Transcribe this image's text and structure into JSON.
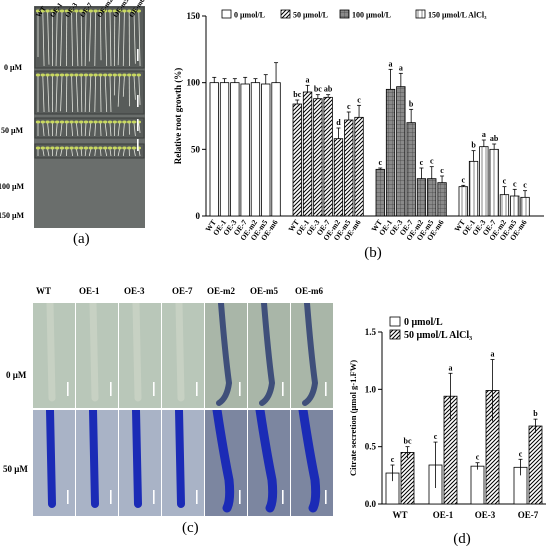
{
  "panel_a": {
    "label": "(a)",
    "genotypes": [
      "WT",
      "OE-1",
      "OE-3",
      "OE-7",
      "OE-m2",
      "OE-m5",
      "OE-m6"
    ],
    "treatments": [
      "0 μM",
      "50 μM",
      "100 μM",
      "150 μM"
    ]
  },
  "panel_b": {
    "label": "(b)",
    "chart_data": {
      "type": "bar",
      "ylabel": "Relative root growth (%)",
      "ylim": [
        0,
        150
      ],
      "yticks": [
        0,
        50,
        100,
        150
      ],
      "categories": [
        "WT",
        "OE-1",
        "OE-3",
        "OE-7",
        "OE-m2",
        "OE-m5",
        "OE-m6"
      ],
      "legend": [
        "0 μmol/L",
        "50 μmol/L",
        "100 μmol/L",
        "150 μmol/L AlCl₃"
      ],
      "series": [
        {
          "name": "0 μmol/L",
          "values": [
            100,
            100,
            100,
            99,
            100,
            99,
            100
          ],
          "errors": [
            4,
            3,
            3,
            5,
            3,
            7,
            15
          ],
          "letters": [
            "",
            "",
            "",
            "",
            "",
            "",
            ""
          ]
        },
        {
          "name": "50 μmol/L",
          "values": [
            84,
            93,
            88,
            89,
            58,
            72,
            74
          ],
          "errors": [
            3,
            5,
            3,
            2,
            8,
            6,
            9
          ],
          "letters": [
            "bc",
            "a",
            "bc",
            "ab",
            "d",
            "c",
            "c"
          ]
        },
        {
          "name": "100 μmol/L",
          "values": [
            35,
            95,
            97,
            70,
            28,
            28,
            25
          ],
          "errors": [
            1,
            15,
            10,
            10,
            8,
            9,
            5
          ],
          "letters": [
            "c",
            "a",
            "a",
            "b",
            "c",
            "c",
            "c"
          ]
        },
        {
          "name": "150 μmol/L AlCl₃",
          "values": [
            22,
            41,
            52,
            50,
            16,
            15,
            14
          ],
          "errors": [
            1,
            8,
            5,
            4,
            6,
            5,
            5
          ],
          "letters": [
            "c",
            "b",
            "a",
            "ab",
            "c",
            "c",
            "c"
          ]
        }
      ]
    }
  },
  "panel_c": {
    "label": "(c)",
    "genotypes": [
      "WT",
      "OE-1",
      "OE-3",
      "OE-7",
      "OE-m2",
      "OE-m5",
      "OE-m6"
    ],
    "treatments": [
      "0 μM",
      "50 μM"
    ]
  },
  "panel_d": {
    "label": "(d)",
    "chart_data": {
      "type": "bar",
      "ylabel": "Citrate secretion (μmol g-1.FW)",
      "ylim": [
        0,
        1.5
      ],
      "yticks": [
        "0.0",
        "0.5",
        "1.0",
        "1.5"
      ],
      "categories": [
        "WT",
        "OE-1",
        "OE-3",
        "OE-7"
      ],
      "legend": [
        "0  μmol/L",
        "50  μmol/L  AlCl₃"
      ],
      "series": [
        {
          "name": "0  μmol/L",
          "values": [
            0.27,
            0.34,
            0.33,
            0.32
          ],
          "errors": [
            0.07,
            0.2,
            0.03,
            0.07
          ],
          "letters": [
            "c",
            "c",
            "c",
            "c"
          ]
        },
        {
          "name": "50  μmol/L  AlCl₃",
          "values": [
            0.45,
            0.94,
            0.99,
            0.68
          ],
          "errors": [
            0.05,
            0.2,
            0.27,
            0.06
          ],
          "letters": [
            "bc",
            "a",
            "a",
            "b"
          ]
        }
      ]
    }
  }
}
